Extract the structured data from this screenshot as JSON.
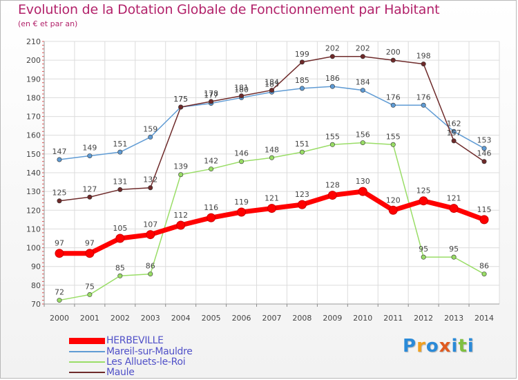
{
  "chart_data": {
    "type": "line",
    "title": "Evolution de la Dotation Globale de Fonctionnement par Habitant",
    "subtitle": "(en € et par an)",
    "x": [
      "2000",
      "2001",
      "2002",
      "2003",
      "2004",
      "2005",
      "2006",
      "2007",
      "2008",
      "2009",
      "2010",
      "2011",
      "2012",
      "2013",
      "2014"
    ],
    "ylim": [
      70,
      210
    ],
    "yticks": [
      70,
      80,
      90,
      100,
      110,
      120,
      130,
      140,
      150,
      160,
      170,
      180,
      190,
      200,
      210
    ],
    "grid": true,
    "series": [
      {
        "name": "HERBEVILLE",
        "color": "#ff0000",
        "values": [
          97,
          97,
          105,
          107,
          112,
          116,
          119,
          121,
          123,
          128,
          130,
          120,
          125,
          121,
          115
        ]
      },
      {
        "name": "Mareil-sur-Mauldre",
        "color": "#5f9bd4",
        "values": [
          147,
          149,
          151,
          159,
          175,
          177,
          180,
          183,
          185,
          186,
          184,
          176,
          176,
          162,
          153
        ]
      },
      {
        "name": "Les Alluets-le-Roi",
        "color": "#99dd66",
        "values": [
          72,
          75,
          85,
          86,
          139,
          142,
          146,
          148,
          151,
          155,
          156,
          155,
          95,
          95,
          86
        ]
      },
      {
        "name": "Maule",
        "color": "#6e2a2a",
        "values": [
          125,
          127,
          131,
          132,
          175,
          178,
          181,
          184,
          199,
          202,
          202,
          200,
          198,
          157,
          146
        ]
      }
    ]
  },
  "legend": {
    "items": [
      "HERBEVILLE",
      "Mareil-sur-Mauldre",
      "Les Alluets-le-Roi",
      "Maule"
    ]
  },
  "logo": {
    "letters": [
      "P",
      "r",
      "o",
      "x",
      "i",
      "t",
      "i"
    ],
    "colors": [
      "#2a8ad8",
      "#f0a020",
      "#2a8ad8",
      "#e05a20",
      "#2a8ad8",
      "#80c040",
      "#2a8ad8"
    ]
  }
}
